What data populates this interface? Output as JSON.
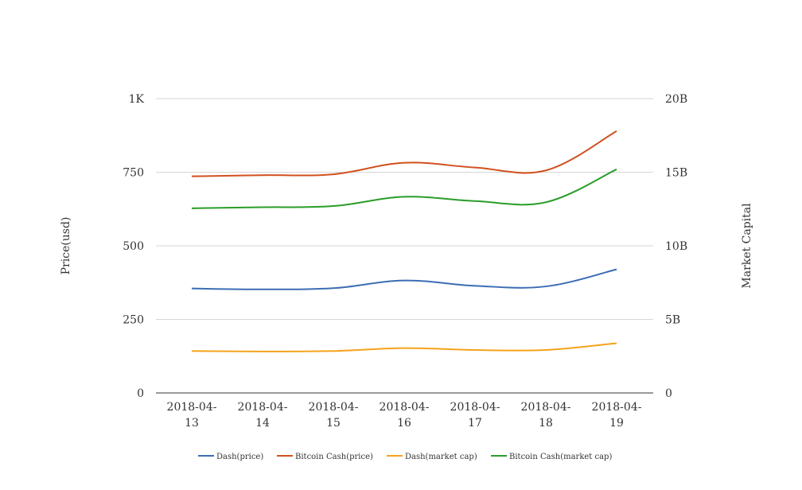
{
  "chart_data": {
    "type": "line",
    "categories": [
      "2018-04-13",
      "2018-04-14",
      "2018-04-15",
      "2018-04-16",
      "2018-04-17",
      "2018-04-18",
      "2018-04-19"
    ],
    "category_lines": [
      [
        "2018-04-",
        "13"
      ],
      [
        "2018-04-",
        "14"
      ],
      [
        "2018-04-",
        "15"
      ],
      [
        "2018-04-",
        "16"
      ],
      [
        "2018-04-",
        "17"
      ],
      [
        "2018-04-",
        "18"
      ],
      [
        "2018-04-",
        "19"
      ]
    ],
    "y_left": {
      "label": "Price(usd)",
      "range": [
        0,
        1000
      ],
      "ticks": [
        0,
        250,
        500,
        750,
        1000
      ],
      "tick_labels": [
        "0",
        "250",
        "500",
        "750",
        "1K"
      ]
    },
    "y_right": {
      "label": "Market Capital",
      "range": [
        0,
        20000000000
      ],
      "ticks": [
        0,
        5000000000,
        10000000000,
        15000000000,
        20000000000
      ],
      "tick_labels": [
        "0",
        "5B",
        "10B",
        "15B",
        "20B"
      ]
    },
    "grid": true,
    "legend_position": "bottom",
    "series": [
      {
        "name": "Dash(price)",
        "axis": "left",
        "color": "#3b6db3",
        "values": [
          355,
          352,
          356,
          382,
          364,
          362,
          420
        ]
      },
      {
        "name": "Bitcoin Cash(price)",
        "axis": "left",
        "color": "#d2501e",
        "values": [
          736,
          740,
          743,
          782,
          766,
          756,
          890
        ]
      },
      {
        "name": "Dash(market cap)",
        "axis": "right",
        "color": "#f5a31b",
        "values": [
          2850000000,
          2820000000,
          2850000000,
          3050000000,
          2920000000,
          2920000000,
          3380000000
        ]
      },
      {
        "name": "Bitcoin Cash(market cap)",
        "axis": "right",
        "color": "#2a9d2a",
        "values": [
          12550000000,
          12620000000,
          12700000000,
          13330000000,
          13040000000,
          12960000000,
          15200000000
        ]
      }
    ]
  }
}
